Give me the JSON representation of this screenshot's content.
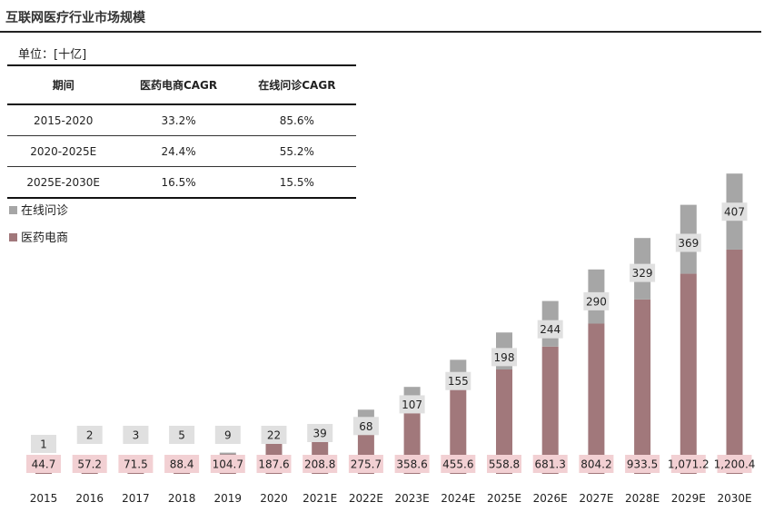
{
  "title": "互联网医疗行业市场规模",
  "unit": "单位：[十亿]",
  "table": {
    "headers": [
      "期间",
      "医药电商CAGR",
      "在线问诊CAGR"
    ],
    "rows": [
      [
        "2015-2020",
        "33.2%",
        "85.6%"
      ],
      [
        "2020-2025E",
        "24.4%",
        "55.2%"
      ],
      [
        "2025E-2030E",
        "16.5%",
        "15.5%"
      ]
    ]
  },
  "legend": [
    {
      "label": "在线问诊",
      "color": "#a6a6a6"
    },
    {
      "label": "医药电商",
      "color": "#a1787b"
    }
  ],
  "colors": {
    "online_consult": "#a6a6a6",
    "pharma_ecom": "#a1787b",
    "pharma_label_bg": "#f2d0d3",
    "consult_label_bg": "#e0e0e0"
  },
  "chart_data": {
    "type": "bar",
    "stacked": true,
    "categories": [
      "2015",
      "2016",
      "2017",
      "2018",
      "2019",
      "2020",
      "2021E",
      "2022E",
      "2023E",
      "2024E",
      "2025E",
      "2026E",
      "2027E",
      "2028E",
      "2029E",
      "2030E"
    ],
    "series": [
      {
        "name": "医药电商",
        "values": [
          44.7,
          57.2,
          71.5,
          88.4,
          104.7,
          187.6,
          208.8,
          275.7,
          358.6,
          455.6,
          558.8,
          681.3,
          804.2,
          933.5,
          1071.2,
          1200.4
        ],
        "labels": [
          "44.7",
          "57.2",
          "71.5",
          "88.4",
          "104.7",
          "187.6",
          "208.8",
          "275.7",
          "358.6",
          "455.6",
          "558.8",
          "681.3",
          "804.2",
          "933.5",
          "1,071.2",
          "1,200.4"
        ]
      },
      {
        "name": "在线问诊",
        "values": [
          1,
          2,
          3,
          5,
          9,
          22,
          39,
          68,
          107,
          155,
          198,
          244,
          290,
          329,
          369,
          407
        ],
        "labels": [
          "1",
          "2",
          "3",
          "5",
          "9",
          "22",
          "39",
          "68",
          "107",
          "155",
          "198",
          "244",
          "290",
          "329",
          "369",
          "407"
        ]
      }
    ]
  }
}
